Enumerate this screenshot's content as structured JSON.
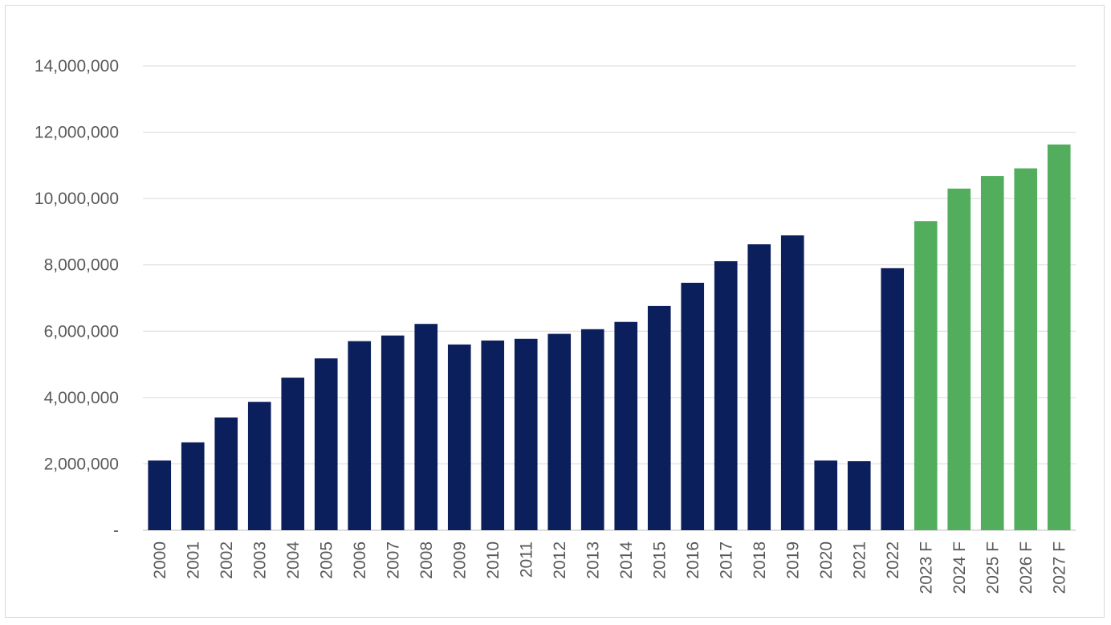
{
  "chart_data": {
    "type": "bar",
    "title": "",
    "xlabel": "",
    "ylabel": "",
    "ylim": [
      0,
      14000000
    ],
    "y_ticks": [
      {
        "value": 0,
        "label": "-"
      },
      {
        "value": 2000000,
        "label": "2,000,000"
      },
      {
        "value": 4000000,
        "label": "4,000,000"
      },
      {
        "value": 6000000,
        "label": "6,000,000"
      },
      {
        "value": 8000000,
        "label": "8,000,000"
      },
      {
        "value": 10000000,
        "label": "10,000,000"
      },
      {
        "value": 12000000,
        "label": "12,000,000"
      },
      {
        "value": 14000000,
        "label": "14,000,000"
      }
    ],
    "grid": true,
    "legend": "none",
    "colors": {
      "actual": "#0b1f5c",
      "forecast": "#52ad5c",
      "grid": "#d9d9d9",
      "axis": "#bfbfbf",
      "text": "#595959"
    },
    "categories": [
      "2000",
      "2001",
      "2002",
      "2003",
      "2004",
      "2005",
      "2006",
      "2007",
      "2008",
      "2009",
      "2010",
      "2011",
      "2012",
      "2013",
      "2014",
      "2015",
      "2016",
      "2017",
      "2018",
      "2019",
      "2020",
      "2021",
      "2022",
      "2023 F",
      "2024 F",
      "2025 F",
      "2026 F",
      "2027 F"
    ],
    "values": [
      2100000,
      2650000,
      3400000,
      3870000,
      4600000,
      5180000,
      5700000,
      5870000,
      6220000,
      5600000,
      5720000,
      5770000,
      5920000,
      6060000,
      6280000,
      6760000,
      7460000,
      8110000,
      8620000,
      8890000,
      2100000,
      2080000,
      7900000,
      9320000,
      10300000,
      10680000,
      10910000,
      11630000
    ],
    "forecast": [
      false,
      false,
      false,
      false,
      false,
      false,
      false,
      false,
      false,
      false,
      false,
      false,
      false,
      false,
      false,
      false,
      false,
      false,
      false,
      false,
      false,
      false,
      false,
      true,
      true,
      true,
      true,
      true
    ]
  }
}
